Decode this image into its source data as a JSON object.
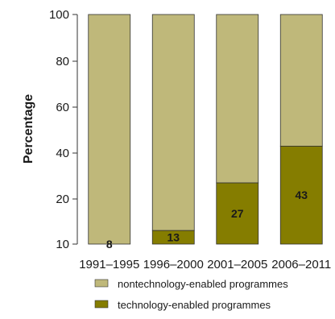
{
  "chart_data": {
    "type": "bar",
    "stacked": true,
    "categories": [
      "1991–1995",
      "1996–2000",
      "2001–2005",
      "2006–2011"
    ],
    "series": [
      {
        "name": "technology-enabled programmes",
        "values": [
          8,
          13,
          27,
          43
        ],
        "color": "#857d00"
      },
      {
        "name": "nontechnology-enabled programmes",
        "values": [
          92,
          87,
          73,
          57
        ],
        "color": "#bfb87a"
      }
    ],
    "data_labels": [
      "8",
      "13",
      "27",
      "43"
    ],
    "ylabel": "Percentage",
    "xlabel": "",
    "yticks": [
      "10",
      "20",
      "40",
      "60",
      "80",
      "100"
    ],
    "ylim": [
      10,
      100
    ],
    "legend_position": "bottom",
    "grid": false
  }
}
